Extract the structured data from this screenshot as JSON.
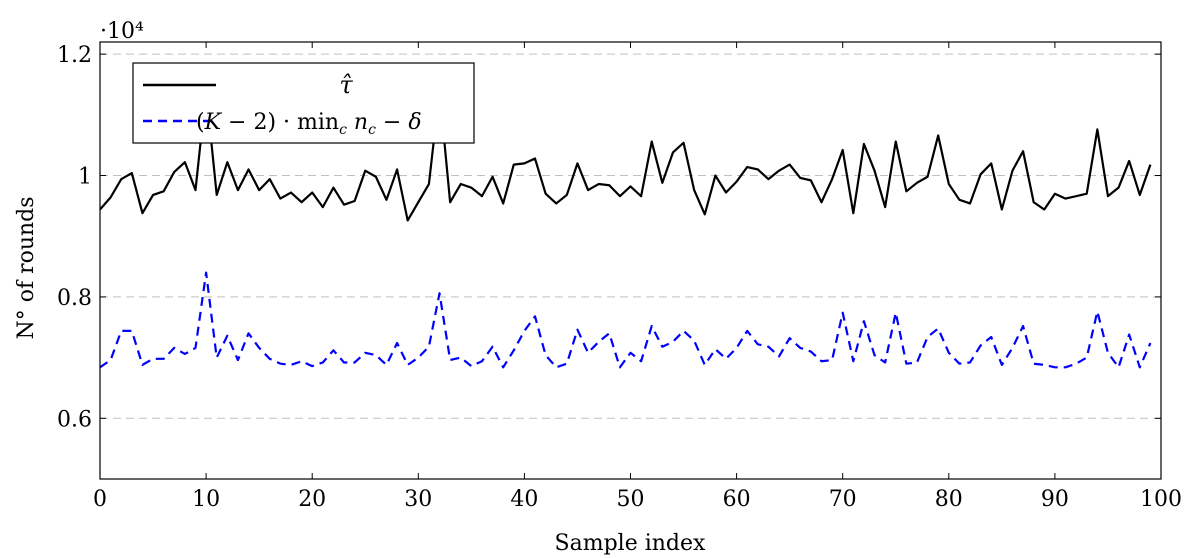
{
  "chart_data": {
    "type": "line",
    "title": "",
    "xlabel": "Sample index",
    "ylabel": "N° of rounds",
    "y_scale_label": "·10⁴",
    "xlim": [
      0,
      100
    ],
    "ylim": [
      0.5,
      1.22
    ],
    "x_ticks": [
      0,
      10,
      20,
      30,
      40,
      50,
      60,
      70,
      80,
      90,
      100
    ],
    "x_tick_labels": [
      "0",
      "10",
      "20",
      "30",
      "40",
      "50",
      "60",
      "70",
      "80",
      "90",
      "100"
    ],
    "y_ticks": [
      0.6,
      0.8,
      1.0,
      1.2
    ],
    "y_tick_labels": [
      "0.6",
      "0.8",
      "1",
      "1.2"
    ],
    "grid": "horizontal dashed",
    "legend_position": "top-left",
    "x": [
      0,
      1,
      2,
      3,
      4,
      5,
      6,
      7,
      8,
      9,
      10,
      11,
      12,
      13,
      14,
      15,
      16,
      17,
      18,
      19,
      20,
      21,
      22,
      23,
      24,
      25,
      26,
      27,
      28,
      29,
      30,
      31,
      32,
      33,
      34,
      35,
      36,
      37,
      38,
      39,
      40,
      41,
      42,
      43,
      44,
      45,
      46,
      47,
      48,
      49,
      50,
      51,
      52,
      53,
      54,
      55,
      56,
      57,
      58,
      59,
      60,
      61,
      62,
      63,
      64,
      65,
      66,
      67,
      68,
      69,
      70,
      71,
      72,
      73,
      74,
      75,
      76,
      77,
      78,
      79,
      80,
      81,
      82,
      83,
      84,
      85,
      86,
      87,
      88,
      89,
      90,
      91,
      92,
      93,
      94,
      95,
      96,
      97,
      98,
      99
    ],
    "series": [
      {
        "name": "τ̂",
        "legend_tex": "tau-hat",
        "color": "#000000",
        "style": "solid",
        "values": [
          0.944,
          0.964,
          0.994,
          1.004,
          0.938,
          0.968,
          0.974,
          1.006,
          1.022,
          0.976,
          1.14,
          0.968,
          1.022,
          0.976,
          1.01,
          0.976,
          0.994,
          0.962,
          0.972,
          0.956,
          0.972,
          0.948,
          0.98,
          0.952,
          0.958,
          1.008,
          0.998,
          0.96,
          1.01,
          0.926,
          0.956,
          0.986,
          1.14,
          0.956,
          0.986,
          0.98,
          0.966,
          0.998,
          0.954,
          1.018,
          1.02,
          1.028,
          0.97,
          0.954,
          0.968,
          1.02,
          0.976,
          0.986,
          0.984,
          0.966,
          0.982,
          0.966,
          1.056,
          0.988,
          1.038,
          1.054,
          0.976,
          0.936,
          1.0,
          0.972,
          0.99,
          1.014,
          1.01,
          0.994,
          1.008,
          1.018,
          0.996,
          0.992,
          0.956,
          0.994,
          1.042,
          0.938,
          1.052,
          1.008,
          0.948,
          1.056,
          0.974,
          0.988,
          0.998,
          1.066,
          0.986,
          0.96,
          0.954,
          1.002,
          1.02,
          0.944,
          1.008,
          1.04,
          0.956,
          0.944,
          0.97,
          0.962,
          0.966,
          0.97,
          1.076,
          0.966,
          0.98,
          1.024,
          0.968,
          1.018
        ]
      },
      {
        "name": "(K − 2) · min_c n_c − δ",
        "color": "#0000ff",
        "style": "dashed",
        "values": [
          0.684,
          0.696,
          0.744,
          0.744,
          0.688,
          0.698,
          0.698,
          0.716,
          0.706,
          0.716,
          0.84,
          0.7,
          0.736,
          0.696,
          0.74,
          0.716,
          0.698,
          0.69,
          0.688,
          0.694,
          0.686,
          0.692,
          0.712,
          0.692,
          0.692,
          0.708,
          0.704,
          0.688,
          0.724,
          0.688,
          0.7,
          0.718,
          0.806,
          0.696,
          0.7,
          0.686,
          0.694,
          0.718,
          0.684,
          0.712,
          0.744,
          0.768,
          0.704,
          0.684,
          0.69,
          0.746,
          0.708,
          0.726,
          0.74,
          0.684,
          0.708,
          0.694,
          0.752,
          0.718,
          0.726,
          0.744,
          0.728,
          0.688,
          0.714,
          0.698,
          0.716,
          0.744,
          0.722,
          0.718,
          0.702,
          0.732,
          0.716,
          0.71,
          0.694,
          0.696,
          0.774,
          0.694,
          0.76,
          0.704,
          0.692,
          0.774,
          0.69,
          0.692,
          0.734,
          0.748,
          0.708,
          0.69,
          0.692,
          0.72,
          0.734,
          0.688,
          0.716,
          0.752,
          0.69,
          0.688,
          0.684,
          0.684,
          0.69,
          0.7,
          0.776,
          0.708,
          0.684,
          0.738,
          0.684,
          0.724
        ]
      }
    ]
  }
}
